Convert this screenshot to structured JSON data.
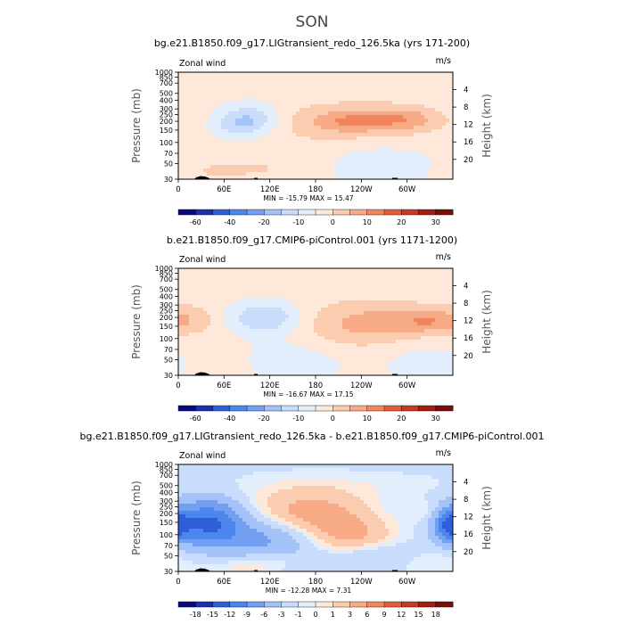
{
  "figure": {
    "title": "SON"
  },
  "chart_data": [
    {
      "type": "heatmap",
      "title": "bg.e21.B1850.f09_g17.LIGtransient_redo_126.5ka (yrs 171-200)",
      "corner_left": "Zonal wind",
      "corner_right": "m/s",
      "ylabel": "Pressure (mb)",
      "ylabel_right": "Height (km)",
      "xticks": [
        "0",
        "60E",
        "120E",
        "180",
        "120W",
        "60W"
      ],
      "xtick_positions_deg": [
        0,
        60,
        120,
        180,
        240,
        300
      ],
      "xlim_deg": [
        0,
        360
      ],
      "yticks": [
        "30",
        "50",
        "70",
        "100",
        "150",
        "200",
        "250",
        "300",
        "400",
        "500",
        "700",
        "850",
        "1000"
      ],
      "ytick_values_mb": [
        30,
        50,
        70,
        100,
        150,
        200,
        250,
        300,
        400,
        500,
        700,
        850,
        1000
      ],
      "ylim_mb": [
        1000,
        30
      ],
      "height_ticks": [
        "4",
        "8",
        "12",
        "16",
        "20"
      ],
      "height_values_km": [
        4,
        8,
        12,
        16,
        20
      ],
      "min_max_text": "MIN = -15.79   MAX =  15.47",
      "min": -15.79,
      "max": 15.47,
      "colorbar": {
        "labels": [
          "-60",
          "-40",
          "-20",
          "-10",
          "0",
          "10",
          "20",
          "30"
        ],
        "colors": [
          "#0a0a7a",
          "#1c2fb0",
          "#2f5fd8",
          "#4a86ec",
          "#739ff2",
          "#a3c2f8",
          "#c9dcfb",
          "#e3eefd",
          "#fde8da",
          "#fcccb0",
          "#f7aa86",
          "#f1855d",
          "#e45c3a",
          "#c93a22",
          "#a01f12",
          "#7a0c0c"
        ]
      }
    },
    {
      "type": "heatmap",
      "title": "b.e21.B1850.f09_g17.CMIP6-piControl.001 (yrs 1171-1200)",
      "corner_left": "Zonal wind",
      "corner_right": "m/s",
      "ylabel": "Pressure (mb)",
      "ylabel_right": "Height (km)",
      "xticks": [
        "0",
        "60E",
        "120E",
        "180",
        "120W",
        "60W"
      ],
      "xtick_positions_deg": [
        0,
        60,
        120,
        180,
        240,
        300
      ],
      "xlim_deg": [
        0,
        360
      ],
      "yticks": [
        "30",
        "50",
        "70",
        "100",
        "150",
        "200",
        "250",
        "300",
        "400",
        "500",
        "700",
        "850",
        "1000"
      ],
      "ytick_values_mb": [
        30,
        50,
        70,
        100,
        150,
        200,
        250,
        300,
        400,
        500,
        700,
        850,
        1000
      ],
      "ylim_mb": [
        1000,
        30
      ],
      "height_ticks": [
        "4",
        "8",
        "12",
        "16",
        "20"
      ],
      "height_values_km": [
        4,
        8,
        12,
        16,
        20
      ],
      "min_max_text": "MIN = -16.67   MAX =  17.15",
      "min": -16.67,
      "max": 17.15,
      "colorbar": {
        "labels": [
          "-60",
          "-40",
          "-20",
          "-10",
          "0",
          "10",
          "20",
          "30"
        ],
        "colors": [
          "#0a0a7a",
          "#1c2fb0",
          "#2f5fd8",
          "#4a86ec",
          "#739ff2",
          "#a3c2f8",
          "#c9dcfb",
          "#e3eefd",
          "#fde8da",
          "#fcccb0",
          "#f7aa86",
          "#f1855d",
          "#e45c3a",
          "#c93a22",
          "#a01f12",
          "#7a0c0c"
        ]
      }
    },
    {
      "type": "heatmap",
      "title": "bg.e21.B1850.f09_g17.LIGtransient_redo_126.5ka - b.e21.B1850.f09_g17.CMIP6-piControl.001",
      "corner_left": "Zonal wind",
      "corner_right": "m/s",
      "ylabel": "Pressure (mb)",
      "ylabel_right": "Height (km)",
      "xticks": [
        "0",
        "60E",
        "120E",
        "180",
        "120W",
        "60W"
      ],
      "xtick_positions_deg": [
        0,
        60,
        120,
        180,
        240,
        300
      ],
      "xlim_deg": [
        0,
        360
      ],
      "yticks": [
        "30",
        "50",
        "70",
        "100",
        "150",
        "200",
        "250",
        "300",
        "400",
        "500",
        "700",
        "850",
        "1000"
      ],
      "ytick_values_mb": [
        30,
        50,
        70,
        100,
        150,
        200,
        250,
        300,
        400,
        500,
        700,
        850,
        1000
      ],
      "ylim_mb": [
        1000,
        30
      ],
      "height_ticks": [
        "4",
        "8",
        "12",
        "16",
        "20"
      ],
      "height_values_km": [
        4,
        8,
        12,
        16,
        20
      ],
      "min_max_text": "MIN = -12.28   MAX =    7.31",
      "min": -12.28,
      "max": 7.31,
      "colorbar": {
        "labels": [
          "-18",
          "-15",
          "-12",
          "-9",
          "-6",
          "-3",
          "-1",
          "0",
          "1",
          "3",
          "6",
          "9",
          "12",
          "15",
          "18"
        ],
        "colors": [
          "#0a0a7a",
          "#1c2fb0",
          "#2f5fd8",
          "#4a86ec",
          "#739ff2",
          "#a3c2f8",
          "#c9dcfb",
          "#e3eefd",
          "#fde8da",
          "#fcccb0",
          "#f7aa86",
          "#f1855d",
          "#e45c3a",
          "#c93a22",
          "#a01f12",
          "#7a0c0c"
        ]
      }
    }
  ]
}
